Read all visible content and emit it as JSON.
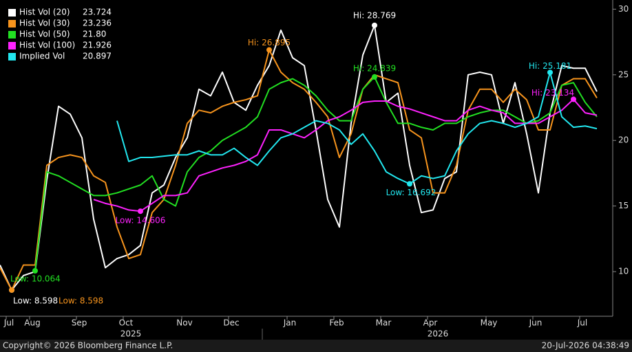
{
  "chart_data": {
    "type": "line",
    "categories": [
      null,
      "Jul",
      null,
      "Aug",
      null,
      null,
      null,
      "Sep",
      null,
      null,
      null,
      "Oct",
      null,
      null,
      null,
      null,
      "Nov",
      null,
      null,
      null,
      "Dec",
      null,
      null,
      null,
      null,
      "Jan",
      null,
      null,
      null,
      "Feb",
      null,
      null,
      null,
      "Mar",
      null,
      null,
      null,
      "Apr",
      null,
      null,
      null,
      null,
      "May",
      null,
      null,
      null,
      "Jun",
      null,
      null,
      null,
      "Jul",
      null
    ],
    "years": [
      "2025",
      "2026"
    ],
    "ylim": [
      6.6,
      30.7
    ],
    "yticks": [
      10,
      15,
      20,
      25,
      30
    ],
    "series": [
      {
        "name": "Hist Vol (20)",
        "last": "23.724",
        "color": "#ffffff",
        "values": [
          10.5,
          8.598,
          9.7,
          10,
          17,
          22.6,
          22,
          20.2,
          14,
          10.3,
          11,
          11.3,
          12,
          16,
          16.6,
          18.7,
          20.2,
          23.9,
          23.4,
          25.2,
          22.9,
          22.3,
          24.2,
          25.7,
          28.4,
          26.3,
          25.7,
          20.8,
          15.5,
          13.4,
          21.3,
          26.5,
          28.769,
          22.9,
          23.6,
          18.1,
          14.5,
          14.7,
          17.1,
          17.6,
          25,
          25.2,
          25,
          21.3,
          24.4,
          20.5,
          16,
          22.1,
          25.7,
          25.5,
          25.5,
          23.724
        ],
        "annotations": [
          {
            "label": "Hi: 28.769",
            "value": 28.769
          },
          {
            "label": "Low: 8.598",
            "value": 8.598
          }
        ]
      },
      {
        "name": "Hist Vol (30)",
        "last": "23.236",
        "color": "#f7941d",
        "values": [
          10.3,
          8.598,
          10.5,
          10.5,
          18.1,
          18.7,
          18.9,
          18.7,
          17.3,
          16.8,
          13.4,
          11,
          11.3,
          14.5,
          15.5,
          18.1,
          21.3,
          22.3,
          22.1,
          22.6,
          22.9,
          23.1,
          23.4,
          26.895,
          25.2,
          24.4,
          23.9,
          22.9,
          21.8,
          18.7,
          20.5,
          23.9,
          25,
          24.7,
          24.4,
          20.8,
          20.2,
          16,
          16,
          18.1,
          22.3,
          23.9,
          23.9,
          22.9,
          23.9,
          23.1,
          20.8,
          20.8,
          24.2,
          24.7,
          24.7,
          23.236
        ],
        "annotations": [
          {
            "label": "Hi: 26.895",
            "value": 26.895
          },
          {
            "label": "Low: 8.598",
            "value": 8.598
          }
        ]
      },
      {
        "name": "Hist Vol (50)",
        "last": "21.80",
        "color": "#22e022",
        "values": [
          null,
          null,
          null,
          10.064,
          17.6,
          17.3,
          16.8,
          16.3,
          15.8,
          15.8,
          16,
          16.3,
          16.6,
          17.3,
          15.5,
          15,
          17.6,
          18.7,
          19.2,
          20,
          20.5,
          21,
          21.8,
          23.9,
          24.4,
          24.7,
          24.2,
          23.4,
          22.3,
          21.5,
          21.5,
          23.9,
          24.839,
          22.9,
          21.3,
          21.3,
          21,
          20.8,
          21.3,
          21.3,
          21.8,
          22.1,
          22.3,
          22.3,
          21.8,
          21.3,
          21.5,
          22.1,
          24.2,
          24.4,
          22.9,
          21.8
        ],
        "annotations": [
          {
            "label": "Hi: 24.839",
            "value": 24.839
          },
          {
            "label": "Low: 10.064",
            "value": 10.064
          }
        ]
      },
      {
        "name": "Hist Vol (100)",
        "last": "21.926",
        "color": "#ff22ff",
        "values": [
          null,
          null,
          null,
          null,
          null,
          null,
          null,
          null,
          15.5,
          15.2,
          15,
          14.7,
          14.606,
          15.2,
          15.8,
          15.8,
          16,
          17.3,
          17.6,
          17.9,
          18.1,
          18.4,
          18.9,
          20.8,
          20.8,
          20.5,
          20.2,
          20.8,
          21.5,
          21.8,
          22.3,
          22.9,
          23,
          23,
          22.6,
          22.4,
          22.1,
          21.8,
          21.5,
          21.5,
          22.3,
          22.6,
          22.3,
          22.1,
          21.3,
          21.3,
          21.3,
          21.8,
          22.3,
          23.134,
          22.1,
          21.926
        ],
        "annotations": [
          {
            "label": "Hi: 23.134",
            "value": 23.134
          },
          {
            "label": "Low: 14.606",
            "value": 14.606
          }
        ]
      },
      {
        "name": "Implied Vol",
        "last": "20.897",
        "color": "#22e8f0",
        "values": [
          null,
          null,
          null,
          null,
          null,
          null,
          null,
          null,
          null,
          null,
          21.5,
          18.4,
          18.7,
          18.7,
          18.8,
          18.9,
          18.9,
          19.2,
          18.9,
          18.9,
          19.4,
          18.7,
          18.1,
          19.2,
          20.2,
          20.5,
          21,
          21.5,
          21.3,
          20.8,
          19.7,
          20.5,
          19.2,
          17.6,
          17.1,
          16.692,
          17.3,
          17.1,
          17.3,
          19.2,
          20.5,
          21.3,
          21.5,
          21.3,
          21,
          21.3,
          21.8,
          25.181,
          21.8,
          21,
          21.1,
          20.897
        ],
        "annotations": [
          {
            "label": "Hi: 25.181",
            "value": 25.181
          },
          {
            "label": "Low: 16.692",
            "value": 16.692
          }
        ]
      }
    ],
    "footer": {
      "left": "Copyright© 2026 Bloomberg Finance L.P.",
      "right": "20-Jul-2026 04:38:49"
    }
  }
}
